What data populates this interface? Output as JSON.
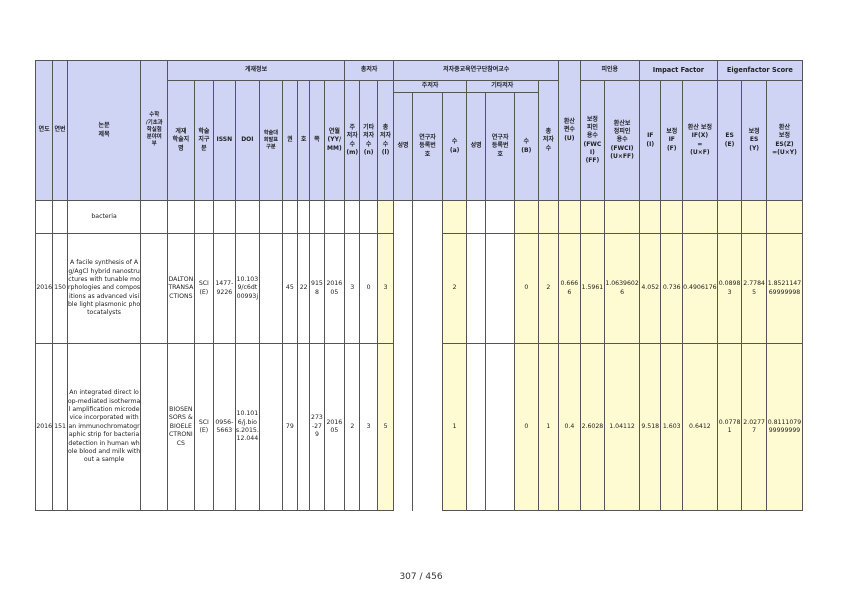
{
  "headers": {
    "year": "연도",
    "serial": "연번",
    "title": "논문\n제목",
    "field": "수학\n/기초과\n학실험\n분야여\n부",
    "pub_info": "게재정보",
    "journal": "게재\n학술지\n명",
    "journal_type": "학술\n지구\n분",
    "issn": "ISSN",
    "doi": "DOI",
    "conf_rank": "학술대\n회발표\n구분",
    "volume": "권",
    "issue": "호",
    "page": "쪽",
    "date": "연월\n(YY/\nMM)",
    "total_authors": "총저자",
    "main_author_cnt": "주\n저자\n수\n(m)",
    "other_author_cnt": "기타\n저자\n수\n(n)",
    "total_author_cnt": "총\n저자\n수\n(l)",
    "participating": "저자중교육연구단참여교수",
    "main_author": "주저자",
    "other_author": "기타저자",
    "name": "성명",
    "researcher_no": "연구자\n등록번\n호",
    "count_a": "수\n(a)",
    "count_b": "수\n(B)",
    "participating_total": "총\n저자\n수",
    "converted": "환산\n편수\n(U)",
    "citation": "피인용",
    "fwci_cited": "보정\n피인\n용수\n(FWC\nI)\n(FF)",
    "fwci_conv": "환산보\n정피인\n용수\n(FWCI)\n(U×FF)",
    "impact": "Impact Factor",
    "if": "IF\n(I)",
    "if_adj": "보정\nIF\n(F)",
    "if_conv": "환산 보정\nIF(X)\n=\n(U×F)",
    "eigen": "Eigenfactor Score",
    "es": "ES\n(E)",
    "es_adj": "보정\nES\n(Y)",
    "es_conv": "환산\n보정\nES(Z)\n=(U×Y)"
  },
  "rows": [
    {
      "year": "",
      "serial": "",
      "title": "bacteria",
      "field": "",
      "journal": "",
      "journal_type": "",
      "issn": "",
      "doi": "",
      "conf_rank": "",
      "volume": "",
      "issue": "",
      "page": "",
      "date": "",
      "m": "",
      "n": "",
      "l": "",
      "main_name": "",
      "main_reg": "",
      "a": "",
      "other_name": "",
      "other_reg": "",
      "b": "",
      "part_total": "",
      "u": "",
      "ff": "",
      "uff": "",
      "i": "",
      "f": "",
      "x": "",
      "e": "",
      "y": "",
      "z": ""
    },
    {
      "year": "2016",
      "serial": "150",
      "title": "A facile synthesis of Ag/AgCl hybrid nanostructures with tunable morphologies and compositions as advanced visible light plasmonic photocatalysts",
      "field": "",
      "journal": "DALTON TRANSACTIONS",
      "journal_type": "SCI(E)",
      "issn": "1477-9226",
      "doi": "10.1039/c6dt00993j",
      "conf_rank": "",
      "volume": "45",
      "issue": "22",
      "page": "9158",
      "date": "201605",
      "m": "3",
      "n": "0",
      "l": "3",
      "main_name": "",
      "main_reg": "",
      "a": "2",
      "other_name": "",
      "other_reg": "",
      "b": "0",
      "part_total": "2",
      "u": "0.6666",
      "ff": "1.5961",
      "uff": "1.06396026",
      "i": "4.052",
      "f": "0.736",
      "x": "0.4906176",
      "e": "0.08983",
      "y": "2.77845",
      "z": "1.852114769999998"
    },
    {
      "year": "2016",
      "serial": "151",
      "title": "An integrated direct loop-mediated isothermal amplification microdevice incorporated with an immunochromatographic strip for bacteria detection in human whole blood and milk without a sample",
      "field": "",
      "journal": "BIOSENSORS & BIOELECTRONICS",
      "journal_type": "SCI(E)",
      "issn": "0956-5663",
      "doi": "10.1016/j.bios.2015.12.044",
      "conf_rank": "",
      "volume": "79",
      "issue": "",
      "page": "273-279",
      "date": "201605",
      "m": "2",
      "n": "3",
      "l": "5",
      "main_name": "",
      "main_reg": "",
      "a": "1",
      "other_name": "",
      "other_reg": "",
      "b": "0",
      "part_total": "1",
      "u": "0.4",
      "ff": "2.6028",
      "uff": "1.04112",
      "i": "9.518",
      "f": "1.603",
      "x": "0.6412",
      "e": "0.07781",
      "y": "2.02777",
      "z": "0.811107999999999"
    }
  ],
  "footer": {
    "page": "307 / 456"
  }
}
